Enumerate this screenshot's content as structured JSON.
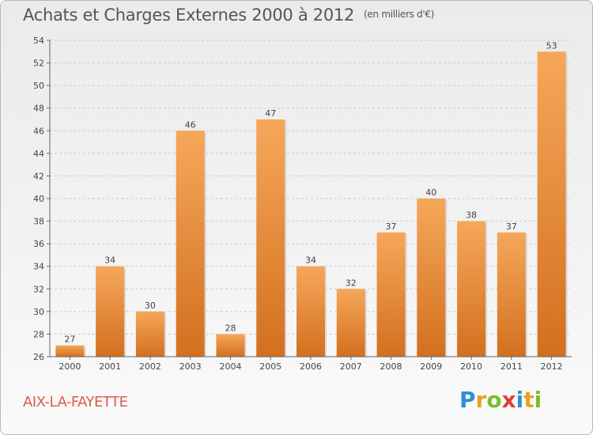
{
  "header": {
    "title": "Achats et Charges Externes 2000 à 2012",
    "unit": "(en milliers d'€)"
  },
  "footer": {
    "commune": "AIX-LA-FAYETTE",
    "logo_letters": [
      "P",
      "r",
      "o",
      "x",
      "i",
      "t",
      "i"
    ],
    "logo_colors": [
      "#2f8fd1",
      "#e8a020",
      "#7bbf2a",
      "#e0403a",
      "#2f8fd1",
      "#e8a020",
      "#7bbf2a"
    ]
  },
  "chart_data": {
    "type": "bar",
    "title": "Achats et Charges Externes 2000 à 2012",
    "subtitle": "(en milliers d'€)",
    "categories": [
      "2000",
      "2001",
      "2002",
      "2003",
      "2004",
      "2005",
      "2006",
      "2007",
      "2008",
      "2009",
      "2010",
      "2011",
      "2012"
    ],
    "values": [
      27,
      34,
      30,
      46,
      28,
      47,
      34,
      32,
      37,
      40,
      38,
      37,
      53
    ],
    "ylim": [
      26,
      54
    ],
    "yticks": [
      26,
      28,
      30,
      32,
      34,
      36,
      38,
      40,
      42,
      44,
      46,
      48,
      50,
      52,
      54
    ],
    "grid": true,
    "bar_color_light": "#f6a75a",
    "bar_color_dark": "#d2701f"
  }
}
